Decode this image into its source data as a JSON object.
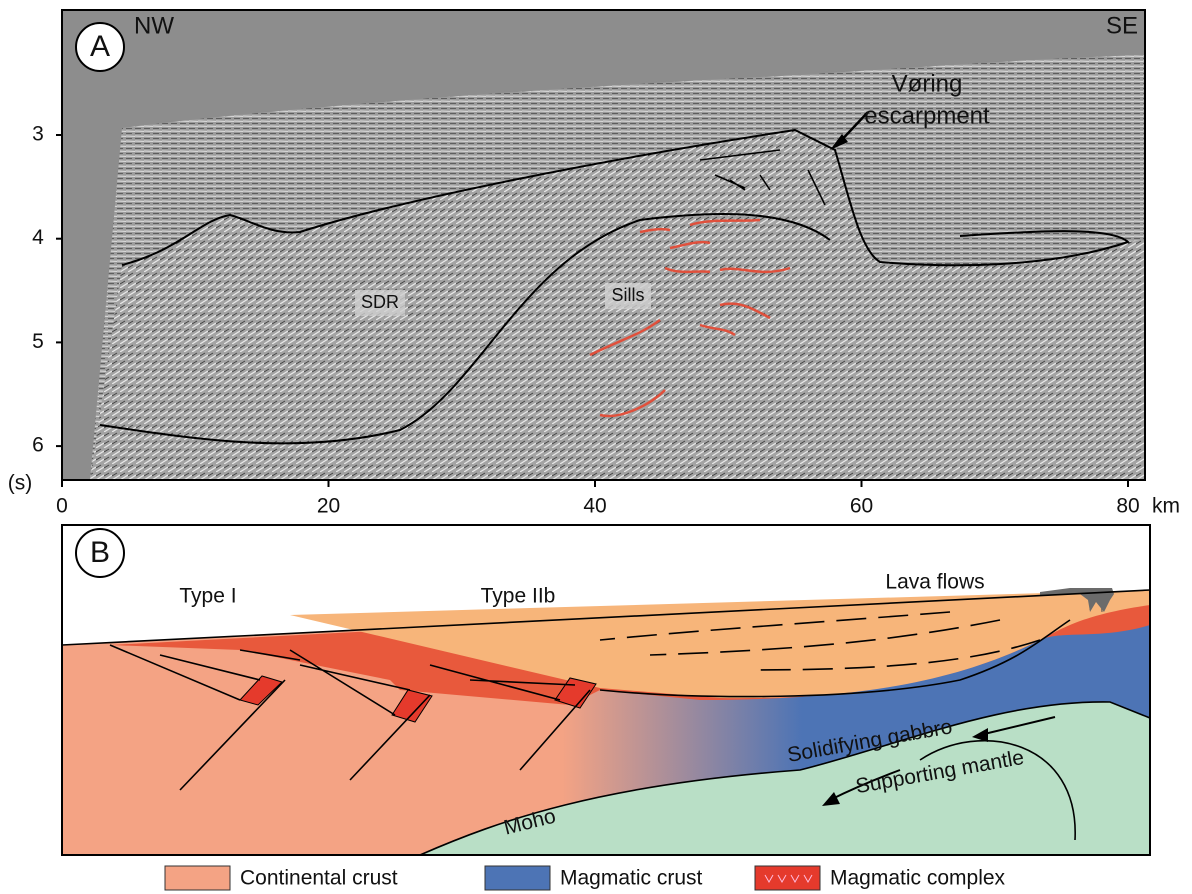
{
  "panel_a": {
    "label": "A",
    "left_label": "NW",
    "right_label": "SE",
    "annotations": {
      "escarpment_1": "Vøring",
      "escarpment_2": "escarpment",
      "sdr": "SDR",
      "sills": "Sills"
    },
    "y_axis": {
      "ticks": [
        "3",
        "4",
        "5",
        "6"
      ],
      "unit": "(s)"
    },
    "x_axis": {
      "ticks": [
        "0",
        "20",
        "40",
        "60",
        "80"
      ],
      "unit": "km"
    }
  },
  "panel_b": {
    "label": "B",
    "annotations": {
      "type_i": "Type I",
      "type_iib": "Type IIb",
      "lava": "Lava flows",
      "gabbro": "Solidifying gabbro",
      "mantle": "Supporting mantle",
      "moho": "Moho"
    }
  },
  "legend": [
    {
      "label": "Continental crust",
      "color": "#f4a384"
    },
    {
      "label": "Magmatic crust",
      "color": "#4d74b5"
    },
    {
      "label": "Magmatic complex",
      "color": "#e53a2c"
    }
  ]
}
